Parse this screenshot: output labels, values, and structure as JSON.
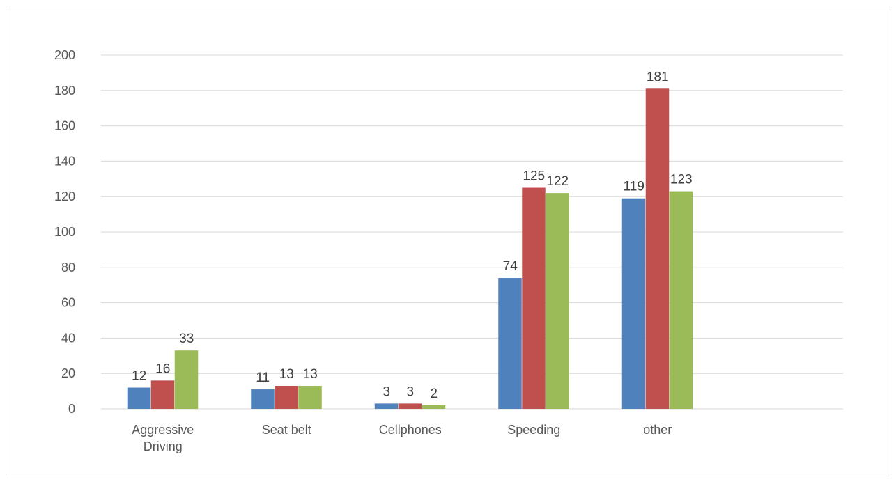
{
  "chart_data": {
    "type": "bar",
    "categories": [
      [
        "Aggressive",
        "Driving"
      ],
      [
        "Seat belt"
      ],
      [
        "Cellphones"
      ],
      [
        "Speeding"
      ],
      [
        "other"
      ],
      [
        ""
      ]
    ],
    "series": [
      {
        "values": [
          12,
          11,
          3,
          74,
          119,
          null
        ],
        "color": "#4f81bd"
      },
      {
        "values": [
          16,
          13,
          3,
          125,
          181,
          null
        ],
        "color": "#c0504d"
      },
      {
        "values": [
          33,
          13,
          2,
          122,
          123,
          null
        ],
        "color": "#9bbb59"
      }
    ],
    "yticks": [
      0,
      20,
      40,
      60,
      80,
      100,
      120,
      140,
      160,
      180,
      200
    ],
    "ylim": [
      0,
      200
    ],
    "grid": true,
    "legend": "none",
    "title": "",
    "xlabel": "",
    "ylabel": ""
  }
}
